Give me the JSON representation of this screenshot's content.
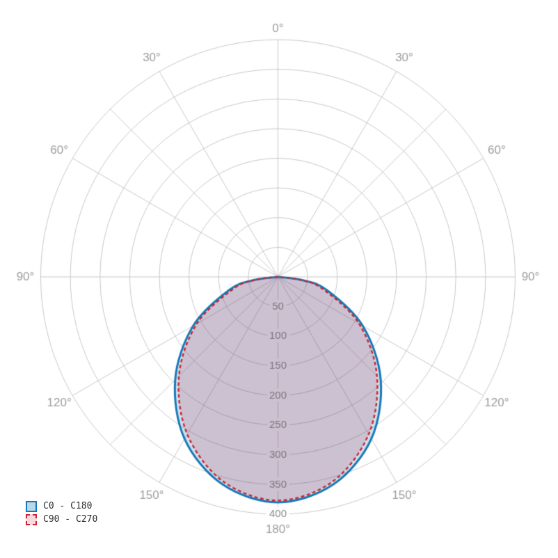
{
  "legend": {
    "items": [
      {
        "label": "C0 - C180",
        "stroke": "#1878b6",
        "fill": "#b9d8eb",
        "line_style": "solid"
      },
      {
        "label": "C90 - C270",
        "stroke": "#cb2433",
        "fill": "#f6dadd",
        "line_style": "dashed"
      }
    ]
  },
  "chart_data": {
    "type": "polar",
    "title": "",
    "orientation": "0-degrees-at-bottom, angles increase toward 180 at top, mirrored left/right",
    "rmax": 400,
    "radial_ticks": [
      50,
      100,
      150,
      200,
      250,
      300,
      350,
      400
    ],
    "radial_tick_labels": [
      "50",
      "100",
      "150",
      "200",
      "250",
      "300",
      "350",
      "400"
    ],
    "angle_ticks": [
      {
        "deg": 0,
        "label": "0°"
      },
      {
        "deg": 30,
        "label": "30°"
      },
      {
        "deg": 60,
        "label": "60°"
      },
      {
        "deg": 90,
        "label": "90°"
      },
      {
        "deg": 120,
        "label": "120°"
      },
      {
        "deg": 150,
        "label": "150°"
      },
      {
        "deg": 180,
        "label": "180°"
      }
    ],
    "grid": {
      "color": "#c7c7c7",
      "spoke_step_deg": 30,
      "extra_spokes_deg": [
        45,
        135,
        225,
        315
      ],
      "grid_on": true
    },
    "angle_label_color": "#9c9c9c",
    "radial_label_color": "#8a8a8a",
    "legend_position": "bottom-left",
    "series": [
      {
        "name": "C0 - C180",
        "color": "#1878b6",
        "dash": "solid",
        "fill_rgba": "rgba(24, 120, 182, 0.22)",
        "gamma_deg": [
          -90,
          -82.5,
          -75,
          -60,
          -45,
          -30,
          -15,
          0,
          15,
          30,
          45,
          60,
          75,
          82.5,
          90
        ],
        "values": [
          0,
          41,
          85,
          165,
          245,
          315,
          362,
          380,
          362,
          315,
          245,
          165,
          85,
          41,
          0
        ]
      },
      {
        "name": "C90 - C270",
        "color": "#cb2433",
        "dash": "dashed",
        "fill_rgba": "rgba(203, 36, 51, 0.17)",
        "gamma_deg": [
          -90,
          -82.5,
          -75,
          -60,
          -45,
          -30,
          -15,
          0,
          15,
          30,
          45,
          60,
          75,
          82.5,
          90
        ],
        "values": [
          0,
          39,
          78,
          158,
          236,
          306,
          357,
          377,
          357,
          306,
          236,
          158,
          78,
          39,
          0
        ]
      }
    ]
  }
}
